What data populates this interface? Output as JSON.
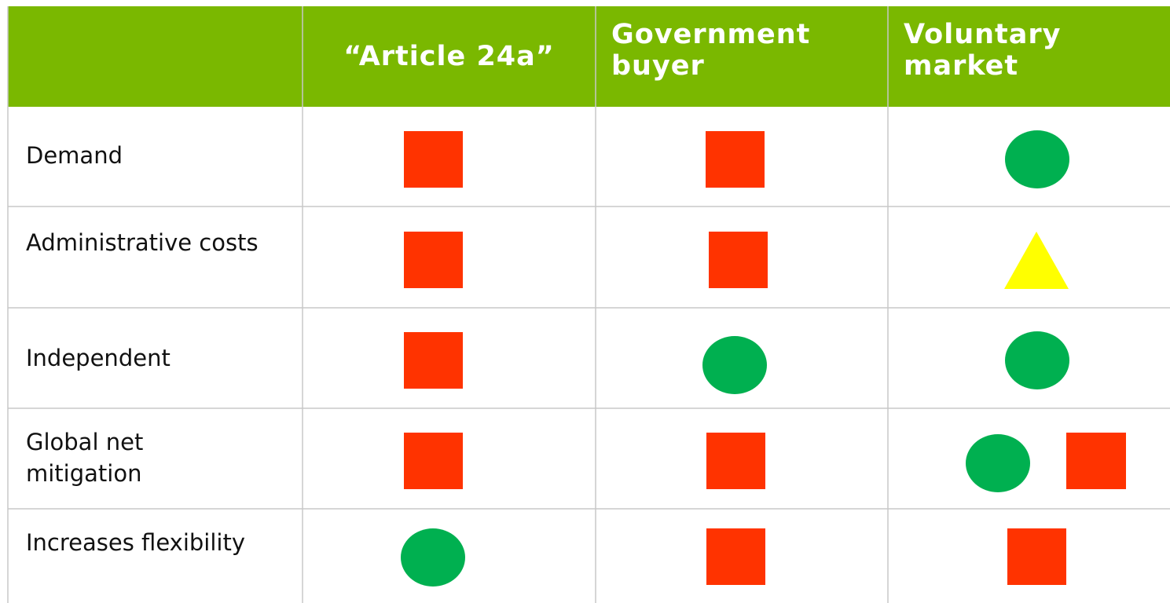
{
  "table": {
    "header": [
      "“Article 24a”",
      "Government buyer",
      "Voluntary market"
    ],
    "rows": [
      "Demand",
      "Administrative costs",
      "Independent",
      "Global net mitigation",
      "Increases flexibility"
    ]
  }
}
